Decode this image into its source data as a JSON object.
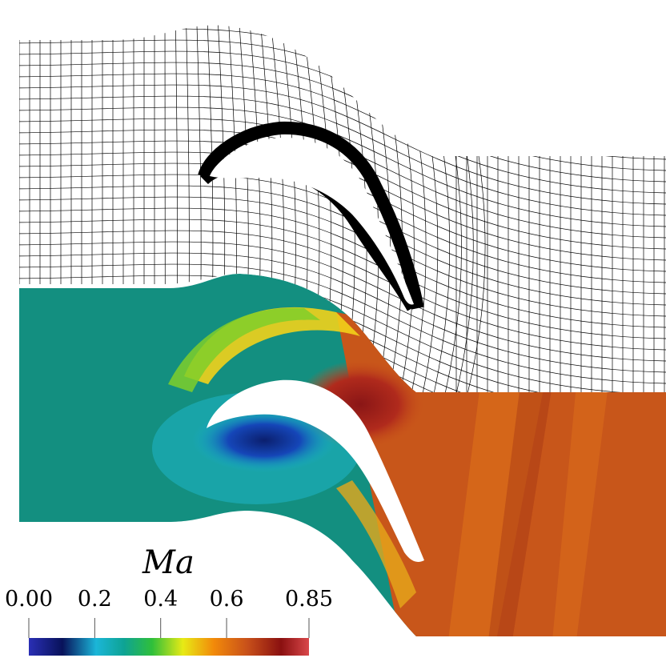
{
  "figure": {
    "description_none": "",
    "colorbar": {
      "title": "Ma",
      "ticks": [
        "0.00",
        "0.2",
        "0.4",
        "0.6",
        "0.85"
      ],
      "range": [
        0.0,
        0.85
      ],
      "colormap": [
        "#2a2fb5",
        "#08125a",
        "#17b4d6",
        "#0aa59b",
        "#2fbf3a",
        "#e7ea15",
        "#f28a0a",
        "#c8501a",
        "#8a1010",
        "#d9474a"
      ]
    },
    "colors": {
      "mesh_line": "#000000",
      "mach_background": "#138f80",
      "blade_fill": "#ffffff"
    }
  }
}
